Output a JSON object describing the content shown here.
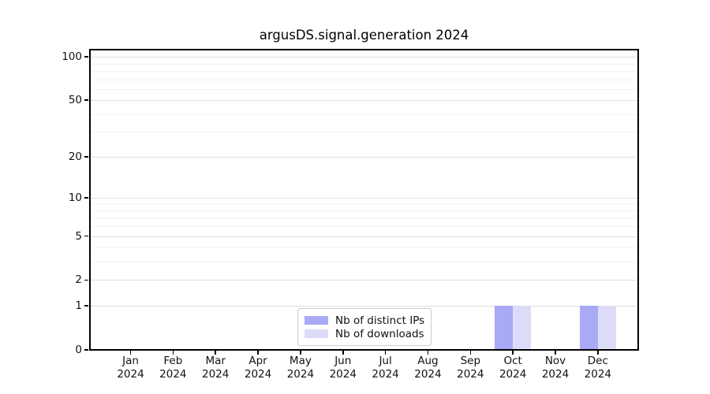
{
  "figure": {
    "title": "argusDS.signal.generation 2024"
  },
  "chart_data": {
    "type": "bar",
    "title": "argusDS.signal.generation 2024",
    "categories": [
      "Jan 2024",
      "Feb 2024",
      "Mar 2024",
      "Apr 2024",
      "May 2024",
      "Jun 2024",
      "Jul 2024",
      "Aug 2024",
      "Sep 2024",
      "Oct 2024",
      "Nov 2024",
      "Dec 2024"
    ],
    "x_tick_months": [
      "Jan",
      "Feb",
      "Mar",
      "Apr",
      "May",
      "Jun",
      "Jul",
      "Aug",
      "Sep",
      "Oct",
      "Nov",
      "Dec"
    ],
    "x_tick_year": "2024",
    "series": [
      {
        "name": "Nb of distinct IPs",
        "color": "#a9a9f6",
        "values": [
          0,
          0,
          0,
          0,
          0,
          0,
          0,
          0,
          0,
          1,
          0,
          1
        ]
      },
      {
        "name": "Nb of downloads",
        "color": "#dcdcf8",
        "values": [
          0,
          0,
          0,
          0,
          0,
          0,
          0,
          0,
          0,
          1,
          0,
          1
        ]
      }
    ],
    "xlabel": "",
    "ylabel": "",
    "yscale": "log1p",
    "ylim": [
      0,
      110
    ],
    "yticks": [
      0,
      1,
      2,
      5,
      10,
      20,
      50,
      100
    ],
    "yticks_minor": [
      3,
      4,
      6,
      7,
      8,
      9,
      30,
      40,
      60,
      70,
      80,
      90
    ],
    "grid": true,
    "legend_position": "lower center"
  },
  "colors": {
    "distinct_ips_bar": "#a9a9f6",
    "downloads_bar": "#dcdcf8",
    "axis_spine": "#000000",
    "grid_major": "#dedede",
    "grid_minor": "#f2f2f2",
    "legend_border": "#cccccc",
    "background": "#ffffff"
  }
}
